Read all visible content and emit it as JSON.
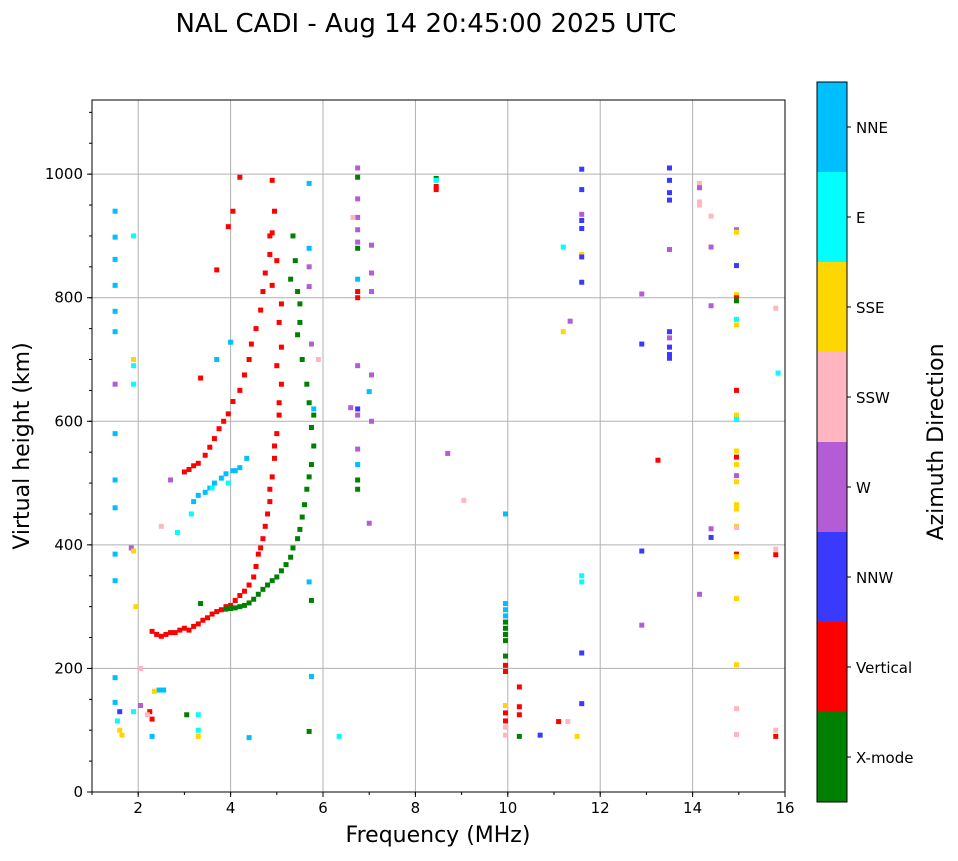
{
  "chart_data": {
    "type": "scatter",
    "title": "NAL CADI - Aug 14 20:45:00 2025 UTC",
    "xlabel": "Frequency (MHz)",
    "ylabel": "Virtual height (km)",
    "xlim": [
      1,
      16
    ],
    "ylim": [
      0,
      1120
    ],
    "xticks": [
      2,
      4,
      6,
      8,
      10,
      12,
      14,
      16
    ],
    "yticks": [
      0,
      200,
      400,
      600,
      800,
      1000
    ],
    "grid": true,
    "colorbar": {
      "label": "Azimuth Direction",
      "categories": [
        "X-mode",
        "Vertical",
        "NNW",
        "W",
        "SSW",
        "SSE",
        "E",
        "NNE"
      ],
      "colors": [
        "#008000",
        "#ff0000",
        "#3a3aff",
        "#b45cd6",
        "#ffb6c1",
        "#ffd700",
        "#00ffff",
        "#00bfff"
      ]
    },
    "point_format": "[frequency_MHz, virtual_height_km, direction_index]",
    "points": [
      [
        2.3,
        260,
        1
      ],
      [
        2.4,
        255,
        1
      ],
      [
        2.5,
        252,
        1
      ],
      [
        2.6,
        255,
        1
      ],
      [
        2.7,
        258,
        1
      ],
      [
        2.8,
        258,
        1
      ],
      [
        2.9,
        262,
        1
      ],
      [
        3.0,
        265,
        1
      ],
      [
        3.1,
        262,
        1
      ],
      [
        3.2,
        268,
        1
      ],
      [
        3.3,
        272,
        1
      ],
      [
        3.4,
        278,
        1
      ],
      [
        3.5,
        282,
        1
      ],
      [
        3.6,
        288,
        1
      ],
      [
        3.7,
        292,
        1
      ],
      [
        3.8,
        295,
        1
      ],
      [
        3.9,
        300,
        1
      ],
      [
        4.0,
        302,
        1
      ],
      [
        4.1,
        310,
        1
      ],
      [
        4.2,
        318,
        1
      ],
      [
        4.3,
        325,
        1
      ],
      [
        4.4,
        335,
        1
      ],
      [
        4.5,
        348,
        1
      ],
      [
        4.55,
        365,
        1
      ],
      [
        4.6,
        385,
        1
      ],
      [
        4.65,
        395,
        1
      ],
      [
        4.7,
        410,
        1
      ],
      [
        4.75,
        430,
        1
      ],
      [
        4.8,
        450,
        1
      ],
      [
        4.85,
        470,
        1
      ],
      [
        4.85,
        490,
        1
      ],
      [
        4.9,
        510,
        1
      ],
      [
        4.95,
        540,
        1
      ],
      [
        4.95,
        560,
        1
      ],
      [
        5.0,
        580,
        1
      ],
      [
        5.05,
        610,
        1
      ],
      [
        5.05,
        630,
        1
      ],
      [
        5.1,
        660,
        1
      ],
      [
        5.0,
        690,
        1
      ],
      [
        5.1,
        720,
        1
      ],
      [
        5.05,
        760,
        1
      ],
      [
        5.1,
        790,
        1
      ],
      [
        4.9,
        820,
        1
      ],
      [
        5.0,
        860,
        1
      ],
      [
        4.85,
        900,
        1
      ],
      [
        4.95,
        940,
        1
      ],
      [
        4.9,
        990,
        1
      ],
      [
        3.0,
        518,
        1
      ],
      [
        3.1,
        522,
        1
      ],
      [
        3.2,
        528,
        1
      ],
      [
        3.3,
        532,
        1
      ],
      [
        3.45,
        545,
        1
      ],
      [
        3.55,
        558,
        1
      ],
      [
        3.65,
        572,
        1
      ],
      [
        3.75,
        588,
        1
      ],
      [
        3.85,
        600,
        1
      ],
      [
        3.95,
        612,
        1
      ],
      [
        4.05,
        632,
        1
      ],
      [
        4.2,
        650,
        1
      ],
      [
        4.3,
        675,
        1
      ],
      [
        4.4,
        700,
        1
      ],
      [
        4.45,
        725,
        1
      ],
      [
        4.55,
        750,
        1
      ],
      [
        4.65,
        780,
        1
      ],
      [
        4.7,
        810,
        1
      ],
      [
        4.75,
        840,
        1
      ],
      [
        4.85,
        870,
        1
      ],
      [
        4.9,
        905,
        1
      ],
      [
        4.05,
        940,
        1
      ],
      [
        4.2,
        995,
        1
      ],
      [
        3.95,
        915,
        1
      ],
      [
        3.7,
        845,
        1
      ],
      [
        3.35,
        670,
        1
      ],
      [
        3.2,
        470,
        7
      ],
      [
        3.3,
        480,
        7
      ],
      [
        3.45,
        485,
        7
      ],
      [
        3.55,
        492,
        7
      ],
      [
        3.65,
        500,
        7
      ],
      [
        3.8,
        508,
        7
      ],
      [
        3.9,
        515,
        7
      ],
      [
        4.05,
        520,
        7
      ],
      [
        4.2,
        525,
        7
      ],
      [
        3.95,
        500,
        6
      ],
      [
        3.6,
        492,
        6
      ],
      [
        3.15,
        450,
        6
      ],
      [
        3.7,
        700,
        7
      ],
      [
        4.0,
        728,
        7
      ],
      [
        4.1,
        520,
        7
      ],
      [
        4.35,
        540,
        7
      ],
      [
        3.9,
        296,
        0
      ],
      [
        4.0,
        297,
        0
      ],
      [
        4.1,
        298,
        0
      ],
      [
        4.2,
        300,
        0
      ],
      [
        4.3,
        302,
        0
      ],
      [
        4.4,
        306,
        0
      ],
      [
        4.5,
        312,
        0
      ],
      [
        4.6,
        320,
        0
      ],
      [
        4.7,
        328,
        0
      ],
      [
        4.8,
        335,
        0
      ],
      [
        4.9,
        342,
        0
      ],
      [
        5.0,
        348,
        0
      ],
      [
        5.1,
        358,
        0
      ],
      [
        5.2,
        368,
        0
      ],
      [
        5.3,
        380,
        0
      ],
      [
        5.35,
        395,
        0
      ],
      [
        5.45,
        410,
        0
      ],
      [
        5.5,
        425,
        0
      ],
      [
        5.55,
        445,
        0
      ],
      [
        5.6,
        465,
        0
      ],
      [
        5.65,
        490,
        0
      ],
      [
        5.7,
        510,
        0
      ],
      [
        5.75,
        530,
        0
      ],
      [
        5.8,
        560,
        0
      ],
      [
        5.75,
        590,
        0
      ],
      [
        5.8,
        610,
        0
      ],
      [
        5.7,
        630,
        0
      ],
      [
        5.65,
        660,
        0
      ],
      [
        5.55,
        700,
        0
      ],
      [
        5.45,
        740,
        0
      ],
      [
        5.5,
        760,
        0
      ],
      [
        5.5,
        790,
        0
      ],
      [
        5.45,
        810,
        0
      ],
      [
        5.3,
        830,
        0
      ],
      [
        5.4,
        860,
        0
      ],
      [
        5.35,
        900,
        0
      ],
      [
        3.35,
        305,
        0
      ],
      [
        1.5,
        940,
        7
      ],
      [
        1.5,
        898,
        7
      ],
      [
        1.5,
        862,
        7
      ],
      [
        1.5,
        820,
        7
      ],
      [
        1.5,
        778,
        7
      ],
      [
        1.5,
        745,
        7
      ],
      [
        1.5,
        580,
        7
      ],
      [
        1.5,
        505,
        7
      ],
      [
        1.5,
        460,
        7
      ],
      [
        1.5,
        385,
        7
      ],
      [
        1.5,
        342,
        7
      ],
      [
        1.5,
        185,
        7
      ],
      [
        1.5,
        145,
        7
      ],
      [
        1.9,
        900,
        6
      ],
      [
        1.9,
        690,
        6
      ],
      [
        1.9,
        660,
        6
      ],
      [
        1.5,
        660,
        3
      ],
      [
        1.85,
        395,
        3
      ],
      [
        1.9,
        700,
        5
      ],
      [
        1.9,
        390,
        5
      ],
      [
        1.95,
        300,
        5
      ],
      [
        2.05,
        200,
        4
      ],
      [
        2.05,
        140,
        3
      ],
      [
        2.25,
        130,
        1
      ],
      [
        2.3,
        118,
        1
      ],
      [
        2.2,
        125,
        4
      ],
      [
        1.6,
        100,
        5
      ],
      [
        1.65,
        92,
        5
      ],
      [
        2.45,
        165,
        7
      ],
      [
        2.55,
        165,
        7
      ],
      [
        2.35,
        163,
        5
      ],
      [
        2.3,
        90,
        7
      ],
      [
        3.3,
        125,
        6
      ],
      [
        3.3,
        100,
        6
      ],
      [
        3.3,
        90,
        5
      ],
      [
        3.05,
        125,
        0
      ],
      [
        2.5,
        430,
        4
      ],
      [
        2.85,
        420,
        6
      ],
      [
        2.7,
        505,
        3
      ],
      [
        1.9,
        130,
        6
      ],
      [
        1.6,
        130,
        2
      ],
      [
        1.55,
        115,
        6
      ],
      [
        5.7,
        985,
        7
      ],
      [
        5.7,
        818,
        3
      ],
      [
        5.7,
        850,
        3
      ],
      [
        5.7,
        880,
        7
      ],
      [
        5.75,
        725,
        3
      ],
      [
        5.8,
        620,
        7
      ],
      [
        5.9,
        700,
        4
      ],
      [
        5.7,
        340,
        7
      ],
      [
        5.75,
        310,
        0
      ],
      [
        5.75,
        187,
        7
      ],
      [
        5.7,
        98,
        0
      ],
      [
        6.35,
        90,
        6
      ],
      [
        4.4,
        88,
        7
      ],
      [
        6.75,
        1010,
        3
      ],
      [
        6.75,
        995,
        0
      ],
      [
        6.75,
        960,
        3
      ],
      [
        6.75,
        930,
        3
      ],
      [
        6.75,
        910,
        3
      ],
      [
        6.75,
        890,
        3
      ],
      [
        6.75,
        880,
        0
      ],
      [
        6.75,
        830,
        7
      ],
      [
        6.75,
        810,
        1
      ],
      [
        6.75,
        800,
        1
      ],
      [
        6.75,
        690,
        3
      ],
      [
        6.75,
        620,
        2
      ],
      [
        6.75,
        610,
        3
      ],
      [
        6.75,
        555,
        3
      ],
      [
        6.75,
        530,
        7
      ],
      [
        6.75,
        505,
        0
      ],
      [
        6.75,
        490,
        0
      ],
      [
        6.6,
        622,
        3
      ],
      [
        7.05,
        885,
        3
      ],
      [
        7.05,
        840,
        3
      ],
      [
        7.05,
        810,
        3
      ],
      [
        7.05,
        675,
        3
      ],
      [
        7.0,
        648,
        7
      ],
      [
        7.05,
        600,
        3
      ],
      [
        7.0,
        435,
        3
      ],
      [
        6.65,
        930,
        4
      ],
      [
        8.45,
        993,
        0
      ],
      [
        8.45,
        990,
        6
      ],
      [
        8.45,
        980,
        1
      ],
      [
        8.45,
        975,
        1
      ],
      [
        8.7,
        548,
        3
      ],
      [
        9.05,
        472,
        4
      ],
      [
        9.95,
        450,
        7
      ],
      [
        9.95,
        305,
        7
      ],
      [
        9.95,
        295,
        7
      ],
      [
        9.95,
        285,
        7
      ],
      [
        9.95,
        275,
        0
      ],
      [
        9.95,
        265,
        0
      ],
      [
        9.95,
        255,
        0
      ],
      [
        9.95,
        245,
        0
      ],
      [
        9.95,
        220,
        0
      ],
      [
        9.95,
        205,
        1
      ],
      [
        9.95,
        195,
        1
      ],
      [
        9.95,
        140,
        5
      ],
      [
        9.95,
        128,
        1
      ],
      [
        9.95,
        115,
        1
      ],
      [
        9.95,
        105,
        4
      ],
      [
        9.95,
        92,
        4
      ],
      [
        10.25,
        170,
        1
      ],
      [
        10.25,
        138,
        1
      ],
      [
        10.25,
        125,
        1
      ],
      [
        10.25,
        90,
        0
      ],
      [
        10.7,
        92,
        2
      ],
      [
        11.2,
        745,
        5
      ],
      [
        11.35,
        762,
        3
      ],
      [
        11.1,
        114,
        1
      ],
      [
        11.3,
        114,
        4
      ],
      [
        11.2,
        882,
        6
      ],
      [
        11.5,
        90,
        5
      ],
      [
        11.6,
        1008,
        2
      ],
      [
        11.6,
        975,
        2
      ],
      [
        11.6,
        935,
        3
      ],
      [
        11.6,
        925,
        2
      ],
      [
        11.6,
        912,
        2
      ],
      [
        11.6,
        870,
        5
      ],
      [
        11.6,
        866,
        2
      ],
      [
        11.6,
        825,
        2
      ],
      [
        11.6,
        350,
        6
      ],
      [
        11.6,
        340,
        6
      ],
      [
        11.6,
        225,
        2
      ],
      [
        11.6,
        143,
        2
      ],
      [
        12.9,
        806,
        3
      ],
      [
        12.9,
        725,
        2
      ],
      [
        12.9,
        390,
        2
      ],
      [
        12.9,
        270,
        3
      ],
      [
        13.25,
        537,
        1
      ],
      [
        13.5,
        1010,
        2
      ],
      [
        13.5,
        990,
        2
      ],
      [
        13.5,
        970,
        2
      ],
      [
        13.5,
        958,
        2
      ],
      [
        13.5,
        878,
        3
      ],
      [
        13.5,
        745,
        2
      ],
      [
        13.5,
        735,
        3
      ],
      [
        13.5,
        720,
        2
      ],
      [
        13.5,
        708,
        2
      ],
      [
        13.5,
        702,
        2
      ],
      [
        14.15,
        985,
        4
      ],
      [
        14.15,
        978,
        3
      ],
      [
        14.15,
        955,
        4
      ],
      [
        14.15,
        950,
        4
      ],
      [
        14.15,
        320,
        3
      ],
      [
        14.4,
        932,
        4
      ],
      [
        14.4,
        882,
        3
      ],
      [
        14.4,
        787,
        3
      ],
      [
        14.4,
        426,
        3
      ],
      [
        14.4,
        412,
        2
      ],
      [
        14.95,
        910,
        3
      ],
      [
        14.95,
        906,
        5
      ],
      [
        14.95,
        852,
        2
      ],
      [
        14.95,
        805,
        5
      ],
      [
        14.95,
        800,
        1
      ],
      [
        14.95,
        795,
        0
      ],
      [
        14.95,
        765,
        6
      ],
      [
        14.95,
        756,
        5
      ],
      [
        14.95,
        650,
        1
      ],
      [
        14.95,
        610,
        5
      ],
      [
        14.95,
        603,
        6
      ],
      [
        14.95,
        552,
        5
      ],
      [
        14.95,
        542,
        1
      ],
      [
        14.95,
        530,
        5
      ],
      [
        14.95,
        512,
        3
      ],
      [
        14.95,
        502,
        5
      ],
      [
        14.95,
        465,
        5
      ],
      [
        14.95,
        458,
        5
      ],
      [
        14.95,
        430,
        5
      ],
      [
        14.95,
        428,
        4
      ],
      [
        14.95,
        385,
        1
      ],
      [
        14.95,
        381,
        5
      ],
      [
        14.95,
        313,
        5
      ],
      [
        14.95,
        206,
        5
      ],
      [
        14.95,
        135,
        4
      ],
      [
        14.95,
        93,
        4
      ],
      [
        15.8,
        783,
        4
      ],
      [
        15.85,
        678,
        6
      ],
      [
        15.8,
        393,
        4
      ],
      [
        15.8,
        384,
        1
      ],
      [
        15.8,
        100,
        4
      ],
      [
        15.8,
        90,
        1
      ]
    ]
  }
}
